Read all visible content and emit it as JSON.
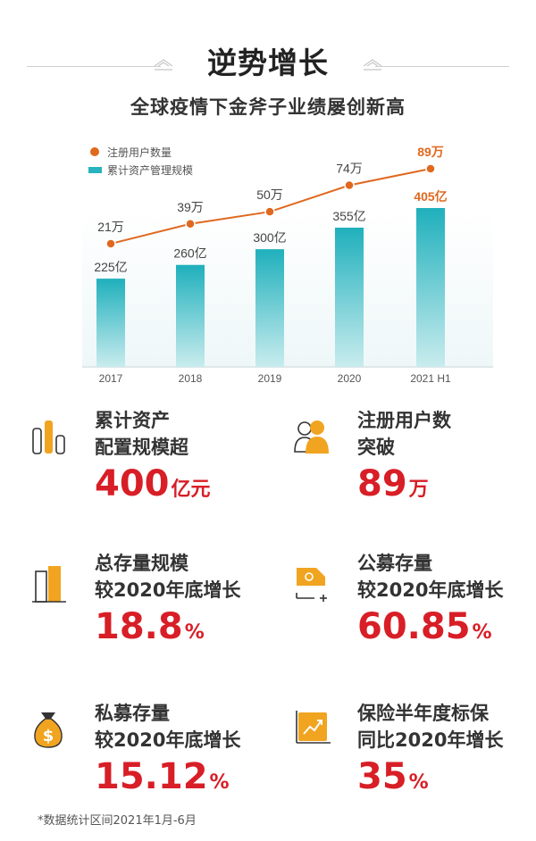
{
  "header": {
    "title": "逆势增长",
    "subtitle": "全球疫情下金斧子业绩屡创新高"
  },
  "chart_data": {
    "type": "bar",
    "categories": [
      "2017",
      "2018",
      "2019",
      "2020",
      "2021 H1"
    ],
    "series": [
      {
        "name": "累计资产管理规模",
        "type": "bar",
        "values": [
          225,
          260,
          300,
          355,
          405
        ],
        "labels": [
          "225亿",
          "260亿",
          "300亿",
          "355亿",
          "405亿"
        ],
        "color": "#29b3be"
      },
      {
        "name": "注册用户数量",
        "type": "line",
        "values": [
          21,
          39,
          50,
          74,
          89
        ],
        "labels": [
          "21万",
          "39万",
          "50万",
          "74万",
          "89万"
        ],
        "color": "#e0681f"
      }
    ],
    "legend_position": "top-left",
    "grid": false,
    "highlight_last": true
  },
  "stats": [
    {
      "label1": "累计资产",
      "label2": "配置规模超",
      "value": "400",
      "unit": "亿元",
      "icon": "bar-chart-icon"
    },
    {
      "label1": "注册用户数",
      "label2": "突破",
      "value": "89",
      "unit": "万",
      "icon": "users-icon"
    },
    {
      "label1": "总存量规模",
      "label2": "较2020年底增长",
      "value": "18.8",
      "unit": "%",
      "icon": "building-icon"
    },
    {
      "label1": "公募存量",
      "label2": "较2020年底增长",
      "value": "60.85",
      "unit": "%",
      "icon": "fund-icon"
    },
    {
      "label1": "私募存量",
      "label2": "较2020年底增长",
      "value": "15.12",
      "unit": "%",
      "icon": "money-bag-icon"
    },
    {
      "label1": "保险半年度标保",
      "label2": "同比2020年增长",
      "value": "35",
      "unit": "%",
      "icon": "trend-icon"
    }
  ],
  "footnote": "*数据统计区间2021年1月-6月"
}
